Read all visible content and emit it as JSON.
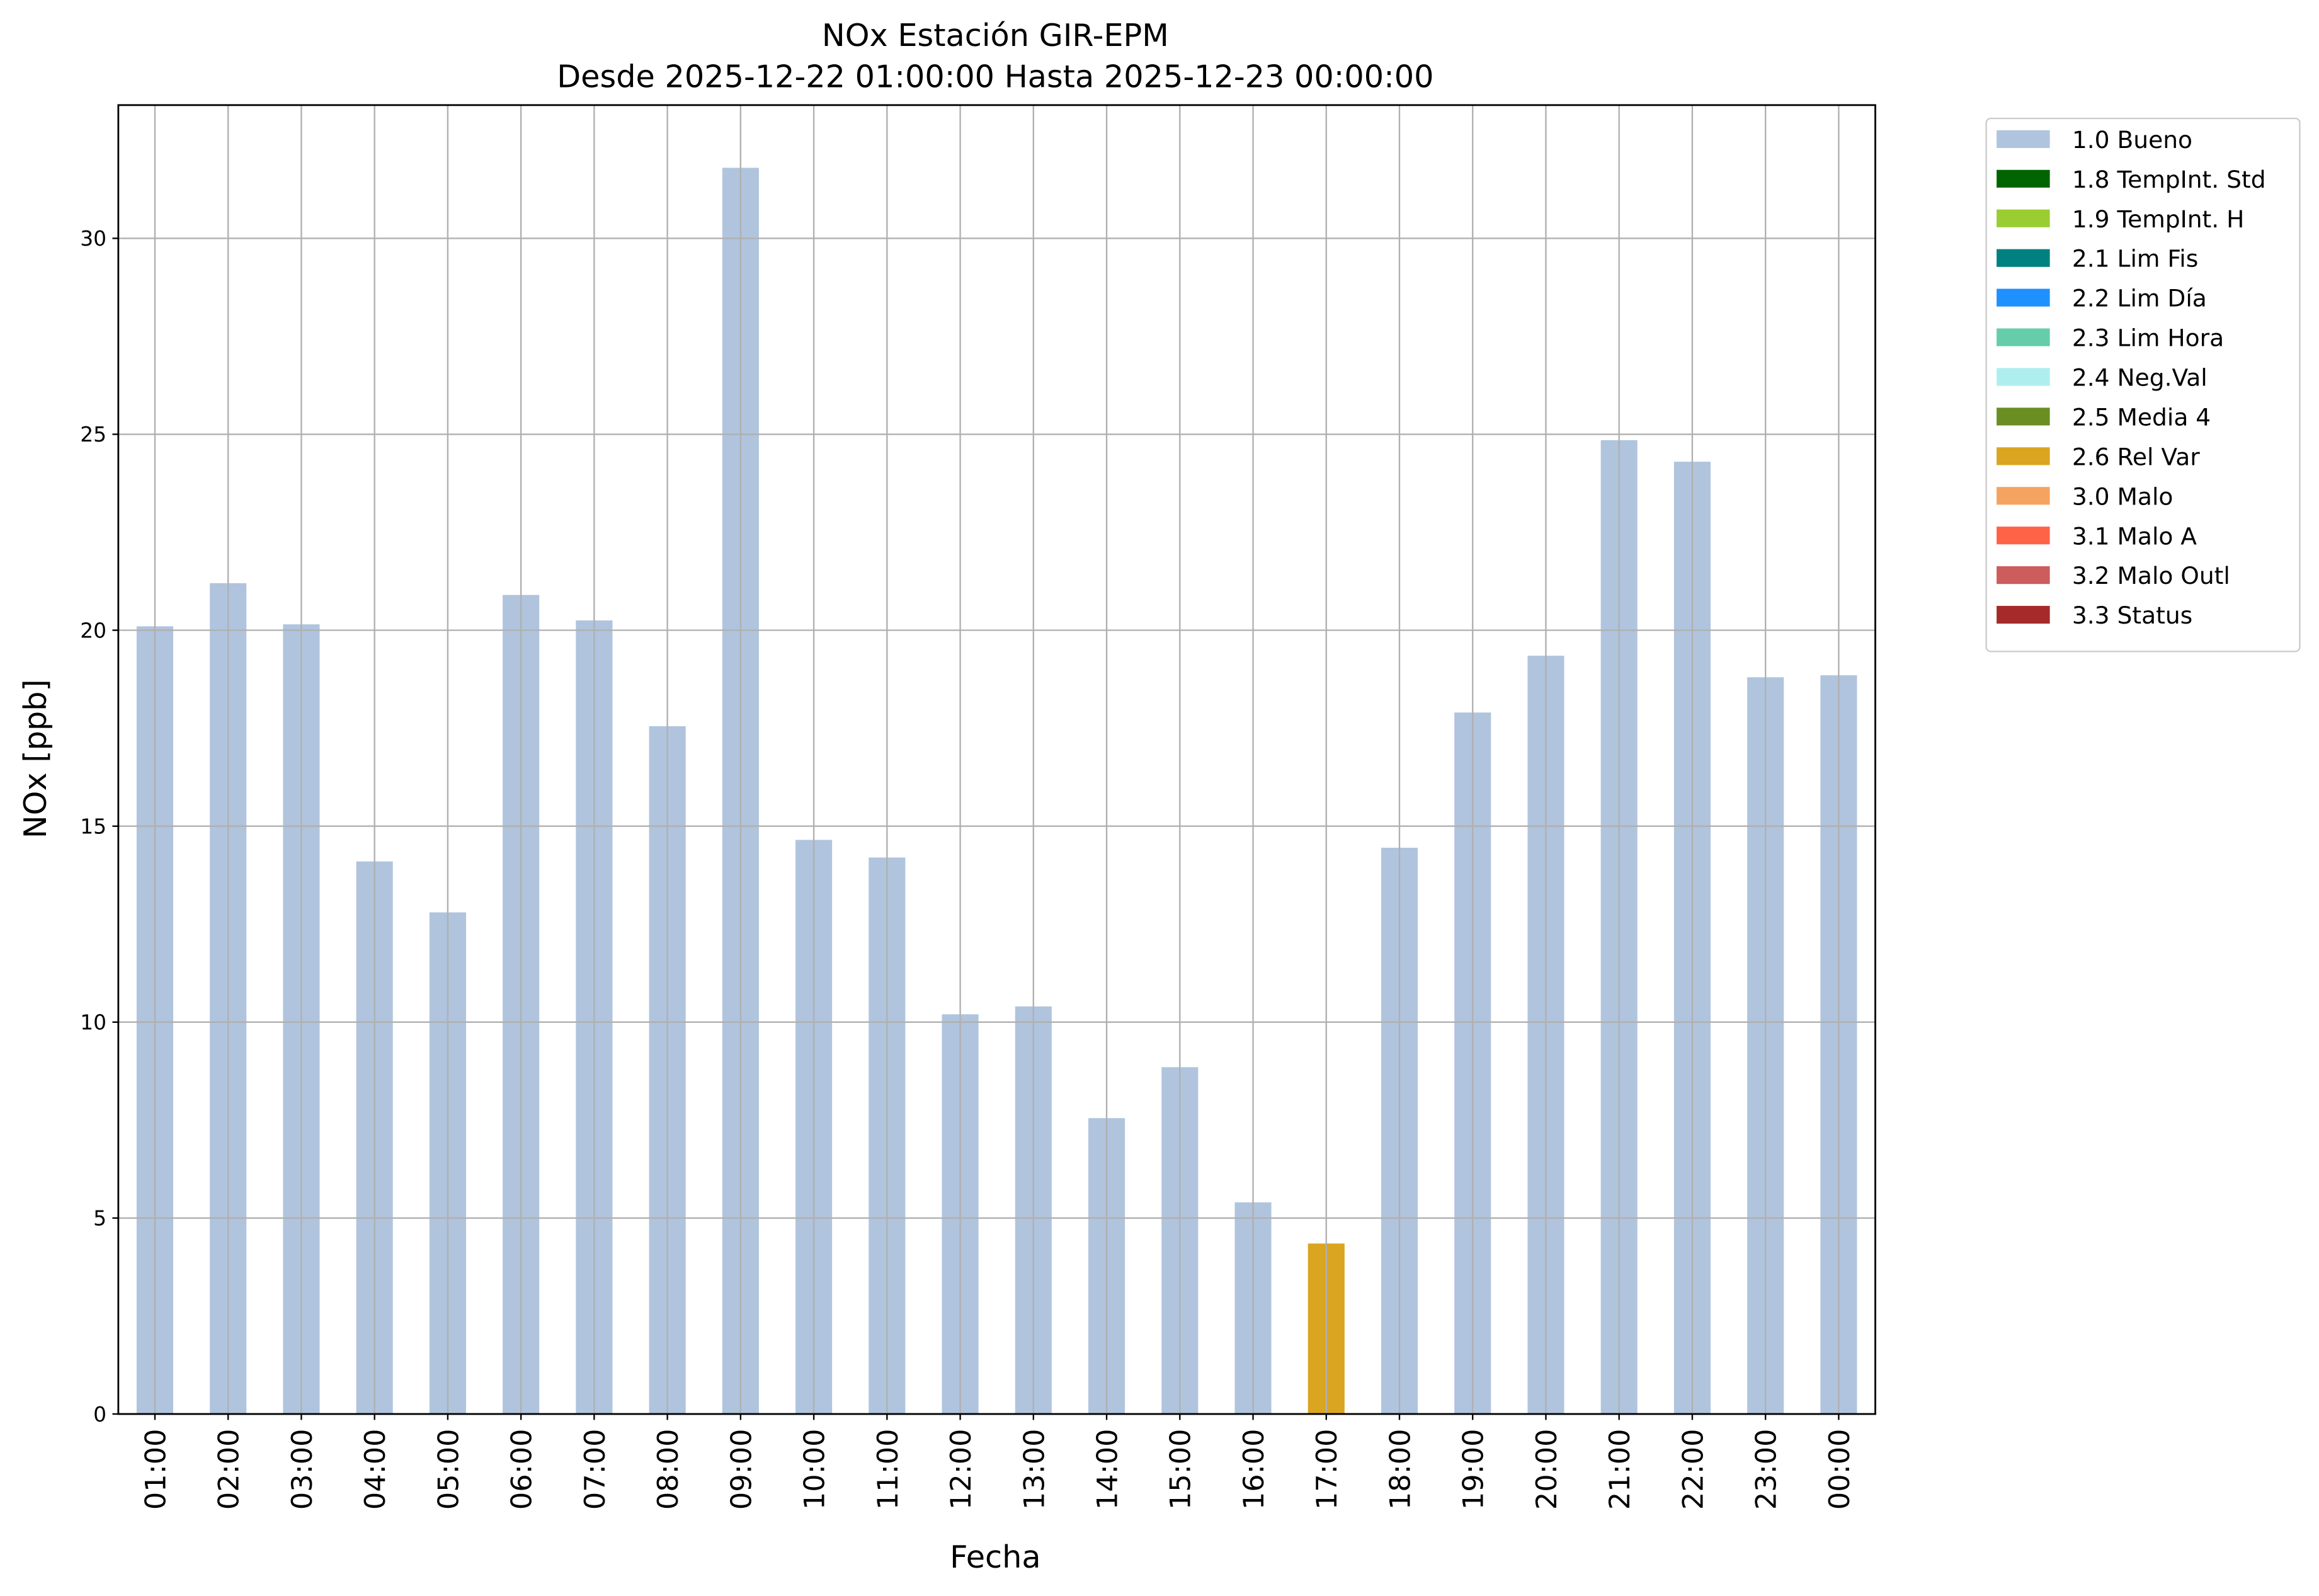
{
  "chart_data": {
    "type": "stacked-bar",
    "title": "NOx Estación GIR-EPM",
    "subtitle": "Desde 2025-12-22 01:00:00 Hasta 2025-12-23 00:00:00",
    "x_label": "Fecha",
    "y_label": "NOx [ppb]",
    "categories": [
      "01:00",
      "02:00",
      "03:00",
      "04:00",
      "05:00",
      "06:00",
      "07:00",
      "08:00",
      "09:00",
      "10:00",
      "11:00",
      "12:00",
      "13:00",
      "14:00",
      "15:00",
      "16:00",
      "17:00",
      "18:00",
      "19:00",
      "20:00",
      "21:00",
      "22:00",
      "23:00",
      "00:00"
    ],
    "series": [
      {
        "name": "1.0 Bueno",
        "color": "#b0c4de",
        "values": [
          20.1,
          21.2,
          20.15,
          14.1,
          12.8,
          20.9,
          20.25,
          17.55,
          31.8,
          14.65,
          14.2,
          10.2,
          10.4,
          7.55,
          8.85,
          5.4,
          null,
          14.45,
          17.9,
          19.35,
          24.85,
          24.3,
          18.8,
          18.85
        ]
      },
      {
        "name": "1.8 TempInt. Std",
        "color": "#006400",
        "values": [
          null,
          null,
          null,
          null,
          null,
          null,
          null,
          null,
          null,
          null,
          null,
          null,
          null,
          null,
          null,
          null,
          null,
          null,
          null,
          null,
          null,
          null,
          null,
          null
        ]
      },
      {
        "name": "1.9 TempInt. H",
        "color": "#9acd32",
        "values": [
          null,
          null,
          null,
          null,
          null,
          null,
          null,
          null,
          null,
          null,
          null,
          null,
          null,
          null,
          null,
          null,
          null,
          null,
          null,
          null,
          null,
          null,
          null,
          null
        ]
      },
      {
        "name": "2.1 Lim Fis",
        "color": "#008080",
        "values": [
          null,
          null,
          null,
          null,
          null,
          null,
          null,
          null,
          null,
          null,
          null,
          null,
          null,
          null,
          null,
          null,
          null,
          null,
          null,
          null,
          null,
          null,
          null,
          null
        ]
      },
      {
        "name": "2.2 Lim Día",
        "color": "#1e90ff",
        "values": [
          null,
          null,
          null,
          null,
          null,
          null,
          null,
          null,
          null,
          null,
          null,
          null,
          null,
          null,
          null,
          null,
          null,
          null,
          null,
          null,
          null,
          null,
          null,
          null
        ]
      },
      {
        "name": "2.3 Lim Hora",
        "color": "#66cdaa",
        "values": [
          null,
          null,
          null,
          null,
          null,
          null,
          null,
          null,
          null,
          null,
          null,
          null,
          null,
          null,
          null,
          null,
          null,
          null,
          null,
          null,
          null,
          null,
          null,
          null
        ]
      },
      {
        "name": "2.4 Neg.Val",
        "color": "#afeeee",
        "values": [
          null,
          null,
          null,
          null,
          null,
          null,
          null,
          null,
          null,
          null,
          null,
          null,
          null,
          null,
          null,
          null,
          null,
          null,
          null,
          null,
          null,
          null,
          null,
          null
        ]
      },
      {
        "name": "2.5 Media 4",
        "color": "#6b8e23",
        "values": [
          null,
          null,
          null,
          null,
          null,
          null,
          null,
          null,
          null,
          null,
          null,
          null,
          null,
          null,
          null,
          null,
          null,
          null,
          null,
          null,
          null,
          null,
          null,
          null
        ]
      },
      {
        "name": "2.6 Rel Var",
        "color": "#daa520",
        "values": [
          null,
          null,
          null,
          null,
          null,
          null,
          null,
          null,
          null,
          null,
          null,
          null,
          null,
          null,
          null,
          null,
          4.35,
          null,
          null,
          null,
          null,
          null,
          null,
          null
        ]
      },
      {
        "name": "3.0 Malo",
        "color": "#f4a460",
        "values": [
          null,
          null,
          null,
          null,
          null,
          null,
          null,
          null,
          null,
          null,
          null,
          null,
          null,
          null,
          null,
          null,
          null,
          null,
          null,
          null,
          null,
          null,
          null,
          null
        ]
      },
      {
        "name": "3.1 Malo A",
        "color": "#ff6347",
        "values": [
          null,
          null,
          null,
          null,
          null,
          null,
          null,
          null,
          null,
          null,
          null,
          null,
          null,
          null,
          null,
          null,
          null,
          null,
          null,
          null,
          null,
          null,
          null,
          null
        ]
      },
      {
        "name": "3.2 Malo Outl",
        "color": "#cd5c5c",
        "values": [
          null,
          null,
          null,
          null,
          null,
          null,
          null,
          null,
          null,
          null,
          null,
          null,
          null,
          null,
          null,
          null,
          null,
          null,
          null,
          null,
          null,
          null,
          null,
          null
        ]
      },
      {
        "name": "3.3 Status",
        "color": "#a52a2a",
        "values": [
          null,
          null,
          null,
          null,
          null,
          null,
          null,
          null,
          null,
          null,
          null,
          null,
          null,
          null,
          null,
          null,
          null,
          null,
          null,
          null,
          null,
          null,
          null,
          null
        ]
      }
    ],
    "ylim": [
      0,
      33.4
    ],
    "yticks": [
      0,
      5,
      10,
      15,
      20,
      25,
      30
    ],
    "grid": true,
    "legend": "outside-right"
  }
}
